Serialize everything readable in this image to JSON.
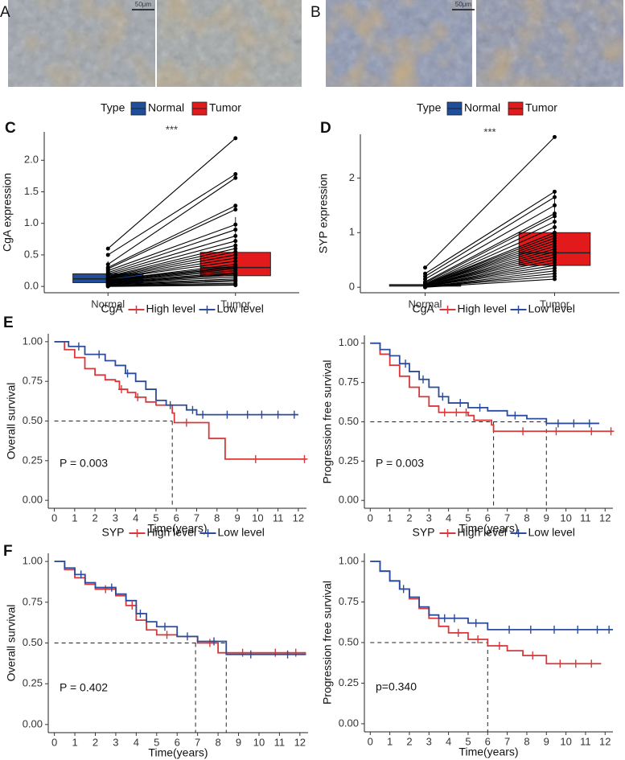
{
  "figure": {
    "panel_labels": [
      "A",
      "B",
      "C",
      "D",
      "E",
      "F"
    ],
    "scale_bars": [
      "50μm",
      "50μm"
    ]
  },
  "chart_data": [
    {
      "type": "paired-box",
      "y_label": "CgA expression",
      "legend_title": "Type",
      "annotation": "***",
      "categories": [
        "Normal",
        "Tumor"
      ],
      "series": [
        {
          "name": "Normal",
          "color": "#1f4e9c",
          "box": {
            "whisker_low": 0,
            "q1": 0.06,
            "median": 0.12,
            "q3": 0.2,
            "whisker_high": 0.4
          },
          "values": [
            0.6,
            0.5,
            0.35,
            0.3,
            0.28,
            0.25,
            0.22,
            0.2,
            0.18,
            0.16,
            0.15,
            0.14,
            0.13,
            0.12,
            0.12,
            0.1,
            0.1,
            0.09,
            0.08,
            0.08,
            0.07,
            0.06,
            0.05,
            0.05,
            0.04,
            0.03,
            0.02,
            0.02,
            0.01,
            0.0
          ]
        },
        {
          "name": "Tumor",
          "color": "#e31a1c",
          "box": {
            "whisker_low": 0,
            "q1": 0.17,
            "median": 0.3,
            "q3": 0.54,
            "whisker_high": 1.1
          },
          "values": [
            2.35,
            1.78,
            1.72,
            1.28,
            1.22,
            0.98,
            0.9,
            0.8,
            0.72,
            0.65,
            0.6,
            0.55,
            0.5,
            0.45,
            0.4,
            0.35,
            0.32,
            0.3,
            0.28,
            0.25,
            0.22,
            0.2,
            0.18,
            0.15,
            0.12,
            0.1,
            0.08,
            0.05,
            0.03,
            0.02
          ]
        }
      ],
      "ylim": [
        -0.1,
        2.45
      ],
      "yticks": [
        {
          "value": 0,
          "label": "0.0"
        },
        0.5,
        {
          "value": 1,
          "label": "1.0"
        },
        1.5,
        {
          "value": 2,
          "label": "2.0"
        }
      ]
    },
    {
      "type": "paired-box",
      "y_label": "SYP expression",
      "legend_title": "Type",
      "annotation": "***",
      "categories": [
        "Normal",
        "Tumor"
      ],
      "series": [
        {
          "name": "Normal",
          "color": "#1f4e9c",
          "box": {
            "whisker_low": 0,
            "q1": 0.02,
            "median": 0.04,
            "q3": 0.05,
            "whisker_high": 0.1
          },
          "values": [
            0.36,
            0.25,
            0.2,
            0.15,
            0.1,
            0.08,
            0.06,
            0.05,
            0.05,
            0.05,
            0.04,
            0.04,
            0.04,
            0.04,
            0.03,
            0.03,
            0.03,
            0.03,
            0.02,
            0.02,
            0.02,
            0.02,
            0.01,
            0.01,
            0.01,
            0.0
          ]
        },
        {
          "name": "Tumor",
          "color": "#e31a1c",
          "box": {
            "whisker_low": 0.15,
            "q1": 0.4,
            "median": 0.63,
            "q3": 1.0,
            "whisker_high": 1.75
          },
          "values": [
            2.75,
            1.75,
            1.65,
            1.5,
            1.35,
            1.3,
            1.2,
            1.1,
            1.0,
            0.95,
            0.9,
            0.85,
            0.8,
            0.75,
            0.7,
            0.65,
            0.6,
            0.55,
            0.5,
            0.45,
            0.4,
            0.35,
            0.3,
            0.25,
            0.2,
            0.15
          ]
        }
      ],
      "ylim": [
        -0.1,
        2.8
      ],
      "yticks": [
        0,
        1,
        2
      ]
    },
    {
      "type": "km",
      "legend_title": "CgA",
      "x_label": "Time(years)",
      "y_label": "Overall survival",
      "annotation": "P = 0.003",
      "series": [
        {
          "name": "High level",
          "color": "#d8383a",
          "x": [
            0,
            0.5,
            1,
            1.5,
            2,
            2.5,
            3,
            3.2,
            3.6,
            4,
            4.5,
            5,
            5.8,
            5.9,
            7.6,
            8.4,
            12.4
          ],
          "values": [
            1,
            0.95,
            0.9,
            0.83,
            0.79,
            0.76,
            0.75,
            0.7,
            0.68,
            0.65,
            0.62,
            0.6,
            0.55,
            0.49,
            0.39,
            0.26,
            0.26
          ],
          "censor_x": [
            3.3,
            4.1,
            6.5,
            9.9,
            12.3
          ]
        },
        {
          "name": "Low level",
          "color": "#2b4c9a",
          "x": [
            0,
            0.7,
            1.5,
            2.5,
            3,
            3.5,
            4,
            4.5,
            5,
            5.5,
            6.5,
            7,
            12
          ],
          "values": [
            1,
            0.97,
            0.92,
            0.88,
            0.85,
            0.8,
            0.75,
            0.7,
            0.63,
            0.6,
            0.57,
            0.54,
            0.54
          ],
          "censor_x": [
            1.2,
            2.2,
            3.6,
            5.7,
            6.8,
            7.3,
            8.5,
            9.5,
            10.2,
            11,
            11.8
          ]
        }
      ],
      "median_x": [
        5.8
      ],
      "median_y": 0.5,
      "xlim": [
        -0.3,
        12.4
      ],
      "xticks": [
        0,
        1,
        2,
        3,
        4,
        5,
        6,
        7,
        8,
        9,
        10,
        11,
        12
      ],
      "ylim": [
        -0.05,
        1.05
      ],
      "yticks": [
        {
          "value": 0,
          "label": "0.00"
        },
        {
          "value": 0.25,
          "label": "0.25"
        },
        {
          "value": 0.5,
          "label": "0.50"
        },
        {
          "value": 0.75,
          "label": "0.75"
        },
        {
          "value": 1,
          "label": "1.00"
        }
      ]
    },
    {
      "type": "km",
      "legend_title": "CgA",
      "x_label": "Time(years)",
      "y_label": "Progression free survival",
      "annotation": "P = 0.003",
      "series": [
        {
          "name": "High level",
          "color": "#d8383a",
          "x": [
            0,
            0.5,
            1,
            1.5,
            2,
            2.5,
            3,
            3.5,
            5,
            5.3,
            6.2,
            6.3,
            12.4
          ],
          "values": [
            1,
            0.93,
            0.86,
            0.79,
            0.72,
            0.66,
            0.6,
            0.56,
            0.54,
            0.51,
            0.48,
            0.44,
            0.44
          ],
          "censor_x": [
            3.8,
            4.4,
            4.9,
            7.8,
            9.5,
            11.3,
            12.3
          ]
        },
        {
          "name": "Low level",
          "color": "#2b4c9a",
          "x": [
            0,
            0.5,
            1,
            1.5,
            2,
            2.5,
            3,
            3.5,
            4,
            5,
            6,
            7,
            8,
            9,
            11.7
          ],
          "values": [
            1,
            0.96,
            0.92,
            0.87,
            0.82,
            0.77,
            0.72,
            0.66,
            0.62,
            0.59,
            0.57,
            0.54,
            0.52,
            0.49,
            0.49
          ],
          "censor_x": [
            1.8,
            2.7,
            3.7,
            4.6,
            5.6,
            7.4,
            9.6,
            10.4,
            11.2
          ]
        }
      ],
      "median_x": [
        6.3,
        9.0
      ],
      "median_y": 0.5,
      "xlim": [
        -0.3,
        12.4
      ],
      "xticks": [
        0,
        1,
        2,
        3,
        4,
        5,
        6,
        7,
        8,
        9,
        10,
        11,
        12
      ],
      "ylim": [
        -0.05,
        1.05
      ],
      "yticks": [
        {
          "value": 0,
          "label": "0.00"
        },
        {
          "value": 0.25,
          "label": "0.25"
        },
        {
          "value": 0.5,
          "label": "0.50"
        },
        {
          "value": 0.75,
          "label": "0.75"
        },
        {
          "value": 1,
          "label": "1.00"
        }
      ]
    },
    {
      "type": "km",
      "legend_title": "SYP",
      "x_label": "Time(years)",
      "y_label": "Overall survival",
      "annotation": "P = 0.402",
      "series": [
        {
          "name": "High level",
          "color": "#d8383a",
          "x": [
            0,
            0.5,
            1,
            1.5,
            2,
            3,
            3.5,
            4,
            4.5,
            5,
            6,
            7,
            8,
            12.3
          ],
          "values": [
            1,
            0.95,
            0.9,
            0.86,
            0.83,
            0.79,
            0.73,
            0.64,
            0.58,
            0.55,
            0.54,
            0.5,
            0.44,
            0.44
          ],
          "censor_x": [
            2.5,
            3.8,
            5.5,
            7.6,
            9.2,
            10.8,
            11.8
          ]
        },
        {
          "name": "Low level",
          "color": "#2b4c9a",
          "x": [
            0,
            0.5,
            1,
            1.5,
            2,
            3,
            3.5,
            4,
            4.5,
            5,
            6,
            7,
            8.4,
            12.3
          ],
          "values": [
            1,
            0.96,
            0.92,
            0.87,
            0.84,
            0.8,
            0.76,
            0.68,
            0.63,
            0.6,
            0.54,
            0.51,
            0.43,
            0.43
          ],
          "censor_x": [
            1.3,
            2.8,
            4.2,
            5.4,
            6.5,
            7.8,
            9.6,
            11.4
          ]
        }
      ],
      "median_x": [
        6.9,
        8.4
      ],
      "median_y": 0.5,
      "xlim": [
        -0.3,
        12.4
      ],
      "xticks": [
        0,
        1,
        2,
        3,
        4,
        5,
        6,
        7,
        8,
        9,
        10,
        11,
        12
      ],
      "ylim": [
        -0.05,
        1.05
      ],
      "yticks": [
        {
          "value": 0,
          "label": "0.00"
        },
        {
          "value": 0.25,
          "label": "0.25"
        },
        {
          "value": 0.5,
          "label": "0.50"
        },
        {
          "value": 0.75,
          "label": "0.75"
        },
        {
          "value": 1,
          "label": "1.00"
        }
      ]
    },
    {
      "type": "km",
      "legend_title": "SYP",
      "x_label": "Time(years)",
      "y_label": "Progression free survival",
      "annotation": "p=0.340",
      "series": [
        {
          "name": "High level",
          "color": "#d8383a",
          "x": [
            0,
            0.5,
            1,
            1.5,
            2,
            2.5,
            3,
            3.5,
            4,
            5,
            6,
            7,
            7.8,
            9,
            11.8
          ],
          "values": [
            1,
            0.94,
            0.88,
            0.83,
            0.77,
            0.71,
            0.65,
            0.6,
            0.56,
            0.52,
            0.48,
            0.45,
            0.42,
            0.37,
            0.37
          ],
          "censor_x": [
            4.5,
            5.5,
            6.6,
            8.3,
            9.7,
            10.5,
            11.3
          ]
        },
        {
          "name": "Low level",
          "color": "#2b4c9a",
          "x": [
            0,
            0.5,
            1,
            1.5,
            2,
            2.5,
            3,
            3.5,
            5,
            6,
            12.4
          ],
          "values": [
            1,
            0.94,
            0.88,
            0.83,
            0.78,
            0.72,
            0.67,
            0.65,
            0.62,
            0.58,
            0.58
          ],
          "censor_x": [
            1.7,
            3.8,
            4.3,
            5.4,
            7.1,
            8.2,
            9.4,
            10.6,
            11.6,
            12.2
          ]
        }
      ],
      "median_x": [
        6.0
      ],
      "median_y": 0.5,
      "xlim": [
        -0.3,
        12.4
      ],
      "xticks": [
        0,
        1,
        2,
        3,
        4,
        5,
        6,
        7,
        8,
        9,
        10,
        11,
        12
      ],
      "ylim": [
        -0.05,
        1.05
      ],
      "yticks": [
        {
          "value": 0,
          "label": "0.00"
        },
        {
          "value": 0.25,
          "label": "0.25"
        },
        {
          "value": 0.5,
          "label": "0.50"
        },
        {
          "value": 0.75,
          "label": "0.75"
        },
        {
          "value": 1,
          "label": "1.00"
        }
      ]
    }
  ]
}
